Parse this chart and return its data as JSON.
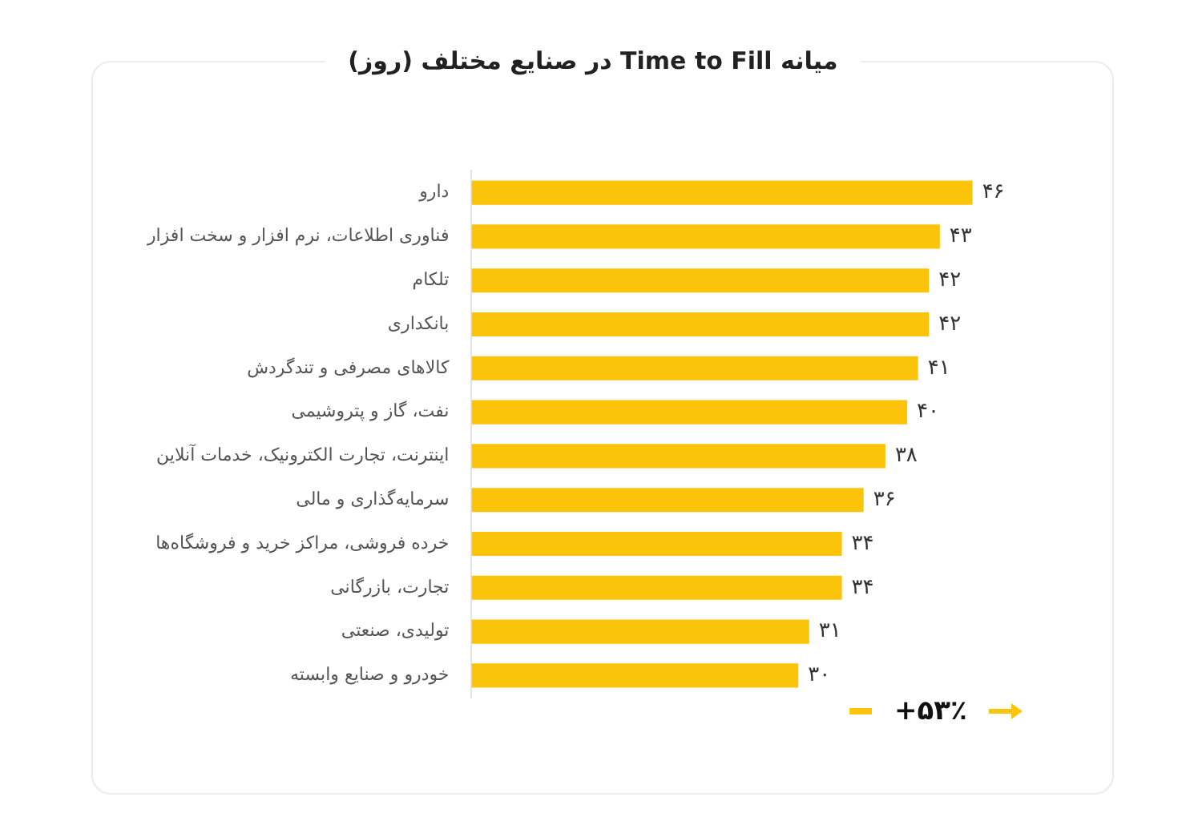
{
  "chart_data": {
    "type": "bar",
    "orientation": "horizontal",
    "title": "میانه Time to Fill در صنایع مختلف (روز)",
    "categories": [
      "دارو",
      "فناوری اطلاعات، نرم افزار و سخت افزار",
      "تلکام",
      "بانکداری",
      "کالاهای مصرفی و تندگردش",
      "نفت، گاز و پتروشیمی",
      "اینترنت، تجارت الکترونیک، خدمات آنلاین",
      "سرمایه‌گذاری و مالی",
      "خرده فروشی، مراکز خرید و فروشگاه‌ها",
      "تجارت، بازرگانی",
      "تولیدی، صنعتی",
      "خودرو و صنایع وابسته"
    ],
    "values": [
      46,
      43,
      42,
      42,
      41,
      40,
      38,
      36,
      34,
      34,
      31,
      30
    ],
    "value_labels": [
      "۴۶",
      "۴۳",
      "۴۲",
      "۴۲",
      "۴۱",
      "۴۰",
      "۳۸",
      "۳۶",
      "۳۴",
      "۳۴",
      "۳۱",
      "۳۰"
    ],
    "color": "#fcc30b",
    "grid": false,
    "legend": false,
    "tick_labels": "y",
    "annotations": [
      "+۵۳٪"
    ]
  }
}
